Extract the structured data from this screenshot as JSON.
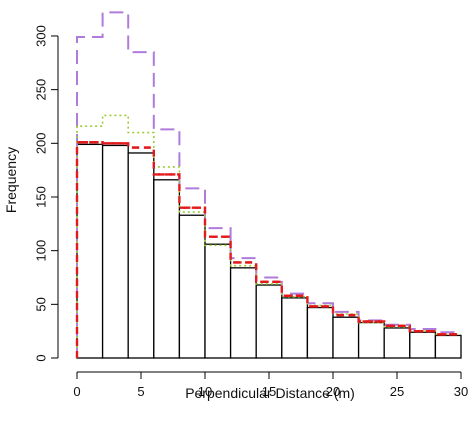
{
  "chart_data": {
    "type": "bar",
    "xlabel": "Perpendicular Distance (m)",
    "ylabel": "Frequency",
    "xlim": [
      0,
      30
    ],
    "ylim": [
      0,
      320
    ],
    "x_ticks": [
      "0",
      "5",
      "10",
      "15",
      "20",
      "25",
      "30"
    ],
    "y_ticks": [
      "0",
      "50",
      "100",
      "150",
      "200",
      "250",
      "300"
    ],
    "bin_edges": [
      0,
      2,
      4,
      6,
      8,
      10,
      12,
      14,
      16,
      18,
      20,
      22,
      24,
      26,
      28,
      30
    ],
    "series": [
      {
        "style": "bars",
        "color": "#000000",
        "values": [
          199,
          198,
          191,
          166,
          133,
          106,
          84,
          68,
          56,
          47,
          38,
          33,
          28,
          24,
          21
        ]
      },
      {
        "style": "dotted",
        "color": "#9acd32",
        "values": [
          216,
          226,
          210,
          178,
          136,
          105,
          86,
          69,
          57,
          49,
          41,
          33,
          29,
          25,
          22
        ]
      },
      {
        "style": "dashed",
        "color": "#e31a1c",
        "values": [
          201,
          200,
          196,
          171,
          140,
          113,
          89,
          71,
          58,
          48,
          40,
          34,
          30,
          25,
          22
        ]
      },
      {
        "style": "longdash",
        "color": "#b07cdb",
        "values": [
          299,
          322,
          285,
          213,
          158,
          121,
          93,
          75,
          60,
          51,
          43,
          35,
          31,
          27,
          24
        ]
      }
    ]
  }
}
